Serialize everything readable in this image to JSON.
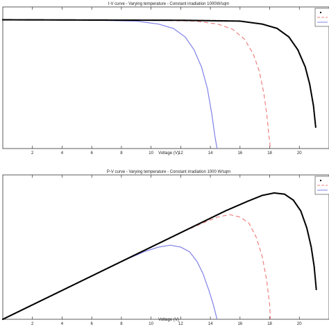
{
  "chart_data": [
    {
      "type": "line",
      "title": "I-V curve - Varying temperature - Constant irradiation 1000W/sqm",
      "xlabel": "Voltage (V)",
      "ylabel": "",
      "xlim": [
        0,
        22
      ],
      "ylim": [
        0,
        3.3
      ],
      "xticks": [
        2,
        4,
        6,
        8,
        10,
        12,
        14,
        16,
        18,
        20
      ],
      "grid": false,
      "legend_position": "top-right",
      "series": [
        {
          "color": "#8080e8",
          "style": "solid",
          "points": [
            [
              0,
              3.0
            ],
            [
              6,
              2.99
            ],
            [
              9,
              2.97
            ],
            [
              10.5,
              2.9
            ],
            [
              11.5,
              2.8
            ],
            [
              12.3,
              2.6
            ],
            [
              12.9,
              2.3
            ],
            [
              13.4,
              1.9
            ],
            [
              13.8,
              1.4
            ],
            [
              14.1,
              0.8
            ],
            [
              14.3,
              0.3
            ],
            [
              14.45,
              0
            ]
          ]
        },
        {
          "color": "#ee8080",
          "style": "dashed",
          "points": [
            [
              0,
              3.0
            ],
            [
              10,
              2.99
            ],
            [
              13,
              2.97
            ],
            [
              14.5,
              2.9
            ],
            [
              15.5,
              2.78
            ],
            [
              16.3,
              2.55
            ],
            [
              16.9,
              2.2
            ],
            [
              17.3,
              1.8
            ],
            [
              17.6,
              1.3
            ],
            [
              17.8,
              0.8
            ],
            [
              17.95,
              0.3
            ],
            [
              18.05,
              0
            ]
          ]
        },
        {
          "color": "#000000",
          "style": "dotted",
          "points": [
            [
              0,
              3.0
            ],
            [
              12,
              2.99
            ],
            [
              16,
              2.97
            ],
            [
              17.5,
              2.9
            ],
            [
              18.5,
              2.8
            ],
            [
              19.3,
              2.6
            ],
            [
              19.9,
              2.3
            ],
            [
              20.4,
              1.9
            ],
            [
              20.7,
              1.5
            ],
            [
              20.95,
              1.0
            ],
            [
              21.1,
              0.5
            ]
          ]
        }
      ]
    },
    {
      "type": "line",
      "title": "P-V curve - Varying temperature - Constant irradiation 1000 W/sqm",
      "xlabel": "Voltage (V)",
      "ylabel": "",
      "xlim": [
        0,
        22
      ],
      "ylim": [
        0,
        60
      ],
      "xticks": [
        2,
        4,
        6,
        8,
        10,
        12,
        14,
        16,
        18,
        20
      ],
      "grid": false,
      "legend_position": "top-right",
      "series": [
        {
          "color": "#8080e8",
          "style": "solid",
          "points": [
            [
              0,
              0
            ],
            [
              2,
              6
            ],
            [
              4,
              12
            ],
            [
              6,
              18
            ],
            [
              8,
              24
            ],
            [
              9.5,
              28
            ],
            [
              10.5,
              30
            ],
            [
              11.3,
              30.8
            ],
            [
              12,
              30
            ],
            [
              12.6,
              28
            ],
            [
              13.1,
              24
            ],
            [
              13.5,
              19
            ],
            [
              13.9,
              12
            ],
            [
              14.2,
              6
            ],
            [
              14.45,
              0
            ]
          ]
        },
        {
          "color": "#ee8080",
          "style": "dashed",
          "points": [
            [
              0,
              0
            ],
            [
              4,
              12
            ],
            [
              8,
              24
            ],
            [
              12,
              36
            ],
            [
              13.5,
              40
            ],
            [
              14.5,
              42.5
            ],
            [
              15.3,
              43.5
            ],
            [
              16,
              42.5
            ],
            [
              16.6,
              40
            ],
            [
              17.1,
              34
            ],
            [
              17.5,
              26
            ],
            [
              17.8,
              16
            ],
            [
              18,
              6
            ],
            [
              18.05,
              0
            ]
          ]
        },
        {
          "color": "#000000",
          "style": "dotted",
          "points": [
            [
              0,
              0
            ],
            [
              4,
              12
            ],
            [
              8,
              24
            ],
            [
              12,
              36
            ],
            [
              15,
              45
            ],
            [
              16.5,
              49
            ],
            [
              17.5,
              51.5
            ],
            [
              18.3,
              52.5
            ],
            [
              19,
              52
            ],
            [
              19.6,
              49.5
            ],
            [
              20.1,
              45
            ],
            [
              20.5,
              38
            ],
            [
              20.8,
              30
            ],
            [
              21.0,
              22
            ],
            [
              21.15,
              12
            ]
          ]
        }
      ]
    }
  ]
}
